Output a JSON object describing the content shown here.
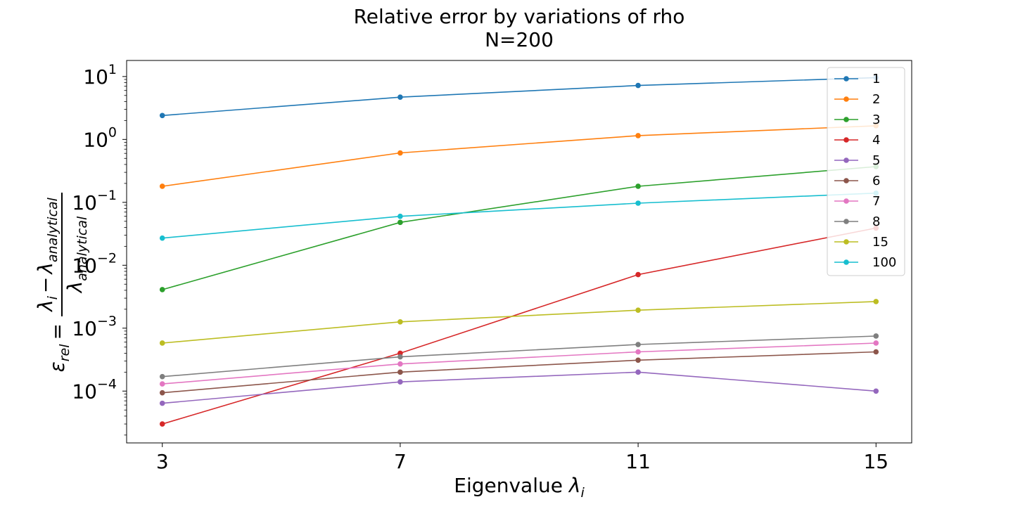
{
  "chart_data": {
    "type": "line",
    "title": "Relative error by variations of rho",
    "subtitle": "N=200",
    "xlabel_text": "Eigenvalue ",
    "xlabel_symbol": "λ",
    "xlabel_subscript": "i",
    "ylabel": {
      "epsilon": "ε",
      "rel": "rel",
      "equals": "=",
      "lambda": "λ",
      "i": "i",
      "minus": "−",
      "analytical": "analytical"
    },
    "x": [
      3,
      7,
      11,
      15
    ],
    "xticks": [
      "3",
      "7",
      "11",
      "15"
    ],
    "xlim": [
      2.4,
      15.6
    ],
    "yscale": "log",
    "ylim": [
      1.5e-05,
      18
    ],
    "yticks": [
      {
        "value": 0.0001,
        "base": "10",
        "exp": "−4"
      },
      {
        "value": 0.001,
        "base": "10",
        "exp": "−3"
      },
      {
        "value": 0.01,
        "base": "10",
        "exp": "−2"
      },
      {
        "value": 0.1,
        "base": "10",
        "exp": "−1"
      },
      {
        "value": 1,
        "base": "10",
        "exp": "0"
      },
      {
        "value": 10,
        "base": "10",
        "exp": "1"
      }
    ],
    "grid": false,
    "legend_position": "top-right",
    "series": [
      {
        "name": "1",
        "color": "#1f77b4",
        "values": [
          2.4,
          4.7,
          7.2,
          9.6
        ]
      },
      {
        "name": "2",
        "color": "#ff7f0e",
        "values": [
          0.18,
          0.61,
          1.15,
          1.65
        ]
      },
      {
        "name": "3",
        "color": "#2ca02c",
        "values": [
          0.0041,
          0.048,
          0.18,
          0.37
        ]
      },
      {
        "name": "4",
        "color": "#d62728",
        "values": [
          3e-05,
          0.0004,
          0.0071,
          0.039
        ]
      },
      {
        "name": "5",
        "color": "#9467bd",
        "values": [
          6.4e-05,
          0.00014,
          0.0002,
          0.0001
        ]
      },
      {
        "name": "6",
        "color": "#8c564b",
        "values": [
          9.4e-05,
          0.0002,
          0.00031,
          0.00042
        ]
      },
      {
        "name": "7",
        "color": "#e377c2",
        "values": [
          0.00013,
          0.00027,
          0.00042,
          0.00058
        ]
      },
      {
        "name": "8",
        "color": "#7f7f7f",
        "values": [
          0.00017,
          0.00035,
          0.00055,
          0.00075
        ]
      },
      {
        "name": "15",
        "color": "#bcbd22",
        "values": [
          0.00058,
          0.00126,
          0.00193,
          0.00265
        ]
      },
      {
        "name": "100",
        "color": "#17becf",
        "values": [
          0.027,
          0.06,
          0.097,
          0.14
        ]
      }
    ]
  }
}
